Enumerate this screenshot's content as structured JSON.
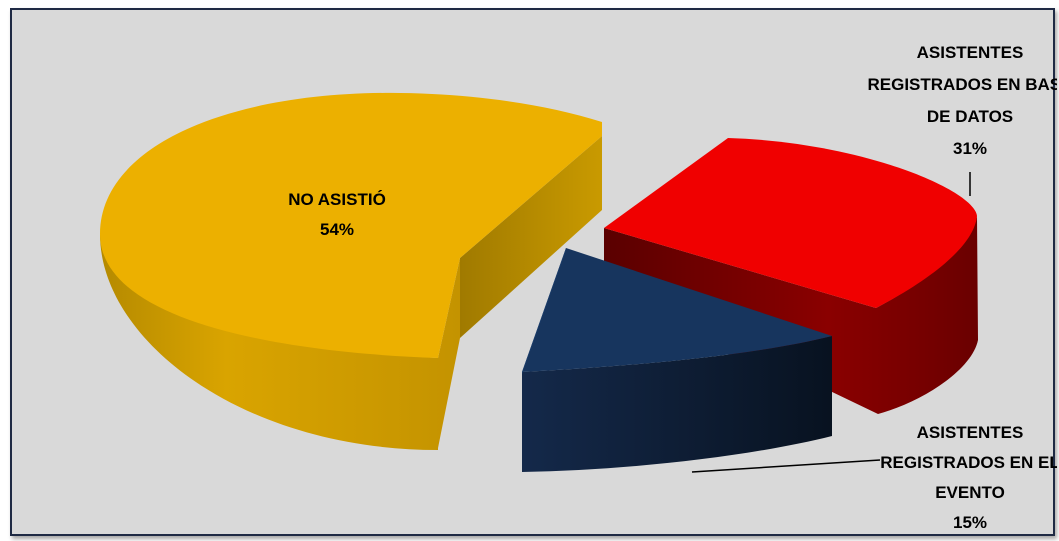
{
  "chart_data": {
    "type": "pie",
    "style": "3d-exploded",
    "slices": [
      {
        "label": [
          "NO ASISTIÓ"
        ],
        "pct_text": "54%",
        "value": 54,
        "top": "#ecb000",
        "side": "#b58a00",
        "side_dark": "#8f6d00"
      },
      {
        "label": [
          "ASISTENTES",
          "REGISTRADOS EN BASE",
          "DE DATOS"
        ],
        "pct_text": "31%",
        "value": 31,
        "top": "#f00000",
        "side": "#8a0000",
        "side_dark": "#5a0000"
      },
      {
        "label": [
          "ASISTENTES",
          "REGISTRADOS EN EL",
          "EVENTO"
        ],
        "pct_text": "15%",
        "value": 15,
        "top": "#17355e",
        "side": "#0f2140",
        "side_dark": "#0a1526"
      }
    ],
    "background": "#d9d9d9"
  }
}
